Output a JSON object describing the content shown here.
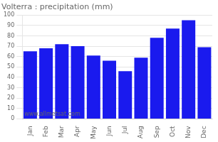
{
  "chart_data": {
    "type": "bar",
    "title": "Volterra : precipitation (mm)",
    "categories": [
      "Jan",
      "Feb",
      "Mar",
      "Apr",
      "May",
      "Jun",
      "Jul",
      "Aug",
      "Sep",
      "Oct",
      "Nov",
      "Dec"
    ],
    "values": [
      65,
      68,
      72,
      70,
      61,
      56,
      46,
      59,
      78,
      87,
      95,
      69
    ],
    "color": "#1a1aee",
    "ylim": [
      0,
      100
    ],
    "yticks": [
      0,
      10,
      20,
      30,
      40,
      50,
      60,
      70,
      80,
      90,
      100
    ],
    "grid": true,
    "annotations": [
      "www.allmetsat.com"
    ]
  }
}
